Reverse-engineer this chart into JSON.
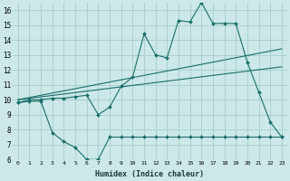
{
  "xlabel": "Humidex (Indice chaleur)",
  "bg_color": "#cce8e8",
  "grid_color": "#a8cccc",
  "line_color": "#1a6e6a",
  "xlim": [
    -0.5,
    23.5
  ],
  "ylim": [
    6,
    16.5
  ],
  "ytick_min": 6,
  "ytick_max": 16,
  "xticks": [
    0,
    1,
    2,
    3,
    4,
    5,
    6,
    7,
    8,
    9,
    10,
    11,
    12,
    13,
    14,
    15,
    16,
    17,
    18,
    19,
    20,
    21,
    22,
    23
  ],
  "yticks": [
    6,
    7,
    8,
    9,
    10,
    11,
    12,
    13,
    14,
    15,
    16
  ],
  "series": [
    {
      "x": [
        0,
        1,
        2,
        3,
        4,
        5,
        6,
        7,
        8,
        9,
        10,
        11,
        12,
        13,
        14,
        15,
        16,
        17,
        18,
        19,
        20,
        21,
        22,
        23
      ],
      "y": [
        9.8,
        10.0,
        10.0,
        10.1,
        10.1,
        10.2,
        10.3,
        9.0,
        9.5,
        10.9,
        11.5,
        14.4,
        13.0,
        12.8,
        15.3,
        15.2,
        16.5,
        15.1,
        15.1,
        15.1,
        12.5,
        10.5,
        8.5,
        7.5
      ],
      "marker": true
    },
    {
      "x": [
        0,
        23
      ],
      "y": [
        10.0,
        13.4
      ],
      "marker": false
    },
    {
      "x": [
        0,
        23
      ],
      "y": [
        10.0,
        12.2
      ],
      "marker": false
    },
    {
      "x": [
        0,
        1,
        2,
        3,
        4,
        5,
        6,
        7,
        8,
        9,
        10,
        11,
        12,
        13,
        14,
        15,
        16,
        17,
        18,
        19,
        20,
        21,
        22,
        23
      ],
      "y": [
        9.8,
        9.9,
        9.9,
        7.8,
        7.2,
        6.8,
        6.0,
        6.0,
        7.5,
        7.5,
        7.5,
        7.5,
        7.5,
        7.5,
        7.5,
        7.5,
        7.5,
        7.5,
        7.5,
        7.5,
        7.5,
        7.5,
        7.5,
        7.5
      ],
      "marker": true
    }
  ]
}
